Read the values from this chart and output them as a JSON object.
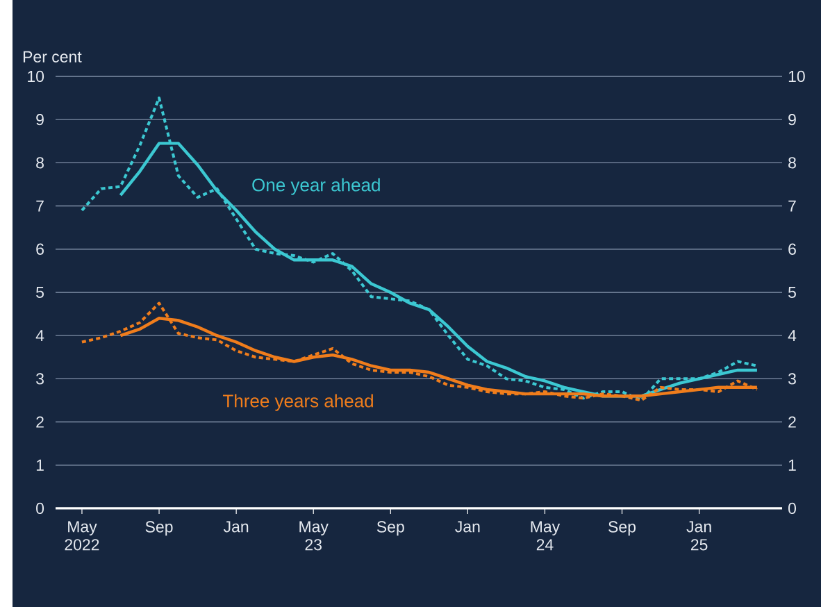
{
  "chart_data": {
    "type": "line",
    "ylabel": "Per cent",
    "xlim": [
      "2022-03-20",
      "2025-05-10"
    ],
    "xticks": [
      {
        "value": "2022-05",
        "label": "May 2022"
      },
      {
        "value": "2022-09",
        "label": "Sep"
      },
      {
        "value": "2023-01",
        "label": "Jan"
      },
      {
        "value": "2023-05",
        "label": "May 23"
      },
      {
        "value": "2023-09",
        "label": "Sep"
      },
      {
        "value": "2024-01",
        "label": "Jan"
      },
      {
        "value": "2024-05",
        "label": "May 24"
      },
      {
        "value": "2024-09",
        "label": "Sep"
      },
      {
        "value": "2025-01",
        "label": "Jan 25"
      }
    ],
    "ylim": [
      0,
      10
    ],
    "yticks": [
      0,
      1,
      2,
      3,
      4,
      5,
      6,
      7,
      8,
      9,
      10
    ],
    "y2lim": [
      0,
      10
    ],
    "y2ticks": [
      0,
      1,
      2,
      3,
      4,
      5,
      6,
      7,
      8,
      9,
      10
    ],
    "grid": "y",
    "series": [
      {
        "name": "One year ahead",
        "color": "#3cc8d2",
        "line_style": "solid",
        "x": [
          "2022-07",
          "2022-08",
          "2022-09",
          "2022-10",
          "2022-11",
          "2022-12",
          "2023-01",
          "2023-02",
          "2023-03",
          "2023-04",
          "2023-05",
          "2023-06",
          "2023-07",
          "2023-08",
          "2023-09",
          "2023-10",
          "2023-11",
          "2023-12",
          "2024-01",
          "2024-02",
          "2024-03",
          "2024-04",
          "2024-05",
          "2024-06",
          "2024-07",
          "2024-08",
          "2024-09",
          "2024-10",
          "2024-11",
          "2024-12",
          "2025-01",
          "2025-02",
          "2025-03",
          "2025-04"
        ],
        "values": [
          7.25,
          7.8,
          8.45,
          8.45,
          7.95,
          7.35,
          6.9,
          6.4,
          6.0,
          5.75,
          5.75,
          5.75,
          5.6,
          5.2,
          5.0,
          4.75,
          4.6,
          4.2,
          3.75,
          3.4,
          3.25,
          3.05,
          2.95,
          2.8,
          2.7,
          2.6,
          2.6,
          2.6,
          2.75,
          2.9,
          3.0,
          3.1,
          3.2,
          3.2
        ]
      },
      {
        "color": "#3cc8d2",
        "line_style": "dashed",
        "x": [
          "2022-05",
          "2022-06",
          "2022-07",
          "2022-08",
          "2022-09",
          "2022-10",
          "2022-11",
          "2022-12",
          "2023-01",
          "2023-02",
          "2023-03",
          "2023-04",
          "2023-05",
          "2023-06",
          "2023-07",
          "2023-08",
          "2023-09",
          "2023-10",
          "2023-11",
          "2023-12",
          "2024-01",
          "2024-02",
          "2024-03",
          "2024-04",
          "2024-05",
          "2024-06",
          "2024-07",
          "2024-08",
          "2024-09",
          "2024-10",
          "2024-11",
          "2024-12",
          "2025-01",
          "2025-02",
          "2025-03",
          "2025-04"
        ],
        "values": [
          6.9,
          7.4,
          7.45,
          8.4,
          9.5,
          7.7,
          7.2,
          7.4,
          6.7,
          6.0,
          5.9,
          5.85,
          5.7,
          5.9,
          5.5,
          4.9,
          4.85,
          4.8,
          4.6,
          4.0,
          3.45,
          3.3,
          3.0,
          2.95,
          2.8,
          2.75,
          2.55,
          2.7,
          2.7,
          2.5,
          3.0,
          3.0,
          3.0,
          3.15,
          3.4,
          3.3
        ]
      },
      {
        "name": "Three years ahead",
        "color": "#f07d1c",
        "line_style": "solid",
        "x": [
          "2022-07",
          "2022-08",
          "2022-09",
          "2022-10",
          "2022-11",
          "2022-12",
          "2023-01",
          "2023-02",
          "2023-03",
          "2023-04",
          "2023-05",
          "2023-06",
          "2023-07",
          "2023-08",
          "2023-09",
          "2023-10",
          "2023-11",
          "2023-12",
          "2024-01",
          "2024-02",
          "2024-03",
          "2024-04",
          "2024-05",
          "2024-06",
          "2024-07",
          "2024-08",
          "2024-09",
          "2024-10",
          "2024-11",
          "2024-12",
          "2025-01",
          "2025-02",
          "2025-03",
          "2025-04"
        ],
        "values": [
          4.0,
          4.15,
          4.4,
          4.35,
          4.2,
          4.0,
          3.85,
          3.65,
          3.5,
          3.4,
          3.5,
          3.55,
          3.45,
          3.3,
          3.2,
          3.2,
          3.15,
          3.0,
          2.85,
          2.75,
          2.7,
          2.65,
          2.65,
          2.65,
          2.65,
          2.6,
          2.6,
          2.6,
          2.65,
          2.7,
          2.75,
          2.8,
          2.8,
          2.8
        ]
      },
      {
        "color": "#f07d1c",
        "line_style": "dashed",
        "x": [
          "2022-05",
          "2022-06",
          "2022-07",
          "2022-08",
          "2022-09",
          "2022-10",
          "2022-11",
          "2022-12",
          "2023-01",
          "2023-02",
          "2023-03",
          "2023-04",
          "2023-05",
          "2023-06",
          "2023-07",
          "2023-08",
          "2023-09",
          "2023-10",
          "2023-11",
          "2023-12",
          "2024-01",
          "2024-02",
          "2024-03",
          "2024-04",
          "2024-05",
          "2024-06",
          "2024-07",
          "2024-08",
          "2024-09",
          "2024-10",
          "2024-11",
          "2024-12",
          "2025-01",
          "2025-02",
          "2025-03",
          "2025-04"
        ],
        "values": [
          3.85,
          3.95,
          4.1,
          4.3,
          4.75,
          4.05,
          3.95,
          3.9,
          3.65,
          3.5,
          3.45,
          3.4,
          3.55,
          3.7,
          3.35,
          3.2,
          3.15,
          3.15,
          3.05,
          2.85,
          2.8,
          2.7,
          2.65,
          2.65,
          2.7,
          2.6,
          2.55,
          2.65,
          2.6,
          2.5,
          2.8,
          2.75,
          2.75,
          2.7,
          2.95,
          2.75
        ]
      }
    ]
  }
}
